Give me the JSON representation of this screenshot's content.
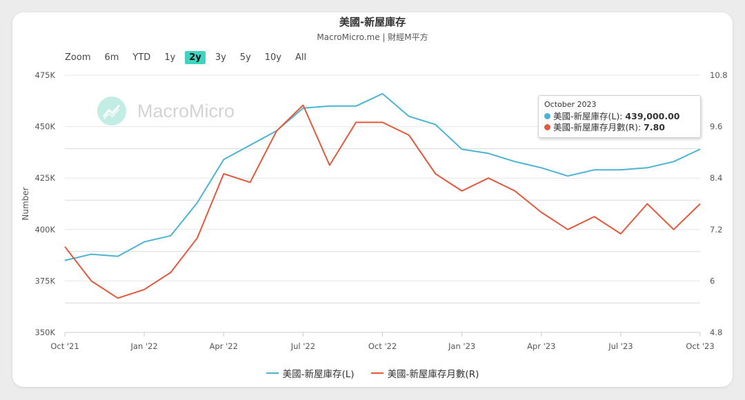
{
  "header": {
    "title": "美國-新屋庫存",
    "subtitle": "MacroMicro.me | 財經M平方"
  },
  "range_selector": {
    "label": "Zoom",
    "buttons": [
      "6m",
      "YTD",
      "1y",
      "2y",
      "3y",
      "5y",
      "10y",
      "All"
    ],
    "active": "2y"
  },
  "watermark": {
    "text": "MacroMicro"
  },
  "tooltip": {
    "date": "October 2023",
    "rows": [
      {
        "label": "美國-新屋庫存(L): ",
        "value": "439,000.00",
        "color": "#4ab3d6"
      },
      {
        "label": "美國-新屋庫存月數(R): ",
        "value": "7.80",
        "color": "#e3573b"
      }
    ]
  },
  "chart_data": {
    "type": "line",
    "x": [
      "2021-10",
      "2021-11",
      "2021-12",
      "2022-01",
      "2022-02",
      "2022-03",
      "2022-04",
      "2022-05",
      "2022-06",
      "2022-07",
      "2022-08",
      "2022-09",
      "2022-10",
      "2022-11",
      "2022-12",
      "2023-01",
      "2023-02",
      "2023-03",
      "2023-04",
      "2023-05",
      "2023-06",
      "2023-07",
      "2023-08",
      "2023-09",
      "2023-10"
    ],
    "x_tick_labels": [
      "Oct '21",
      "Jan '22",
      "Apr '22",
      "Jul '22",
      "Oct '22",
      "Jan '23",
      "Apr '23",
      "Jul '23",
      "Oct '23"
    ],
    "ylabel": "Number",
    "y_left": {
      "ticks": [
        "350K",
        "375K",
        "400K",
        "425K",
        "450K",
        "475K"
      ],
      "range": [
        350000,
        475000
      ]
    },
    "y_right": {
      "ticks": [
        "4.8",
        "6",
        "7.2",
        "8.4",
        "9.6",
        "10.8"
      ],
      "range": [
        4.8,
        10.8
      ]
    },
    "grid": true,
    "legend_position": "bottom",
    "series": [
      {
        "name": "美國-新屋庫存(L)",
        "axis": "left",
        "color": "#4ab3d6",
        "values": [
          385000,
          388000,
          387000,
          394000,
          397000,
          413000,
          434000,
          441000,
          448000,
          459000,
          460000,
          460000,
          466000,
          455000,
          451000,
          439000,
          437000,
          433000,
          430000,
          426000,
          429000,
          429000,
          430000,
          433000,
          439000
        ]
      },
      {
        "name": "美國-新屋庫存月數(R)",
        "axis": "right",
        "color": "#e3573b",
        "values": [
          6.8,
          6.0,
          5.6,
          5.8,
          6.2,
          7.0,
          8.5,
          8.3,
          9.5,
          10.1,
          8.7,
          9.7,
          9.7,
          9.4,
          8.5,
          8.1,
          8.4,
          8.1,
          7.6,
          7.2,
          7.5,
          7.1,
          7.8,
          7.2,
          7.8
        ]
      }
    ]
  }
}
